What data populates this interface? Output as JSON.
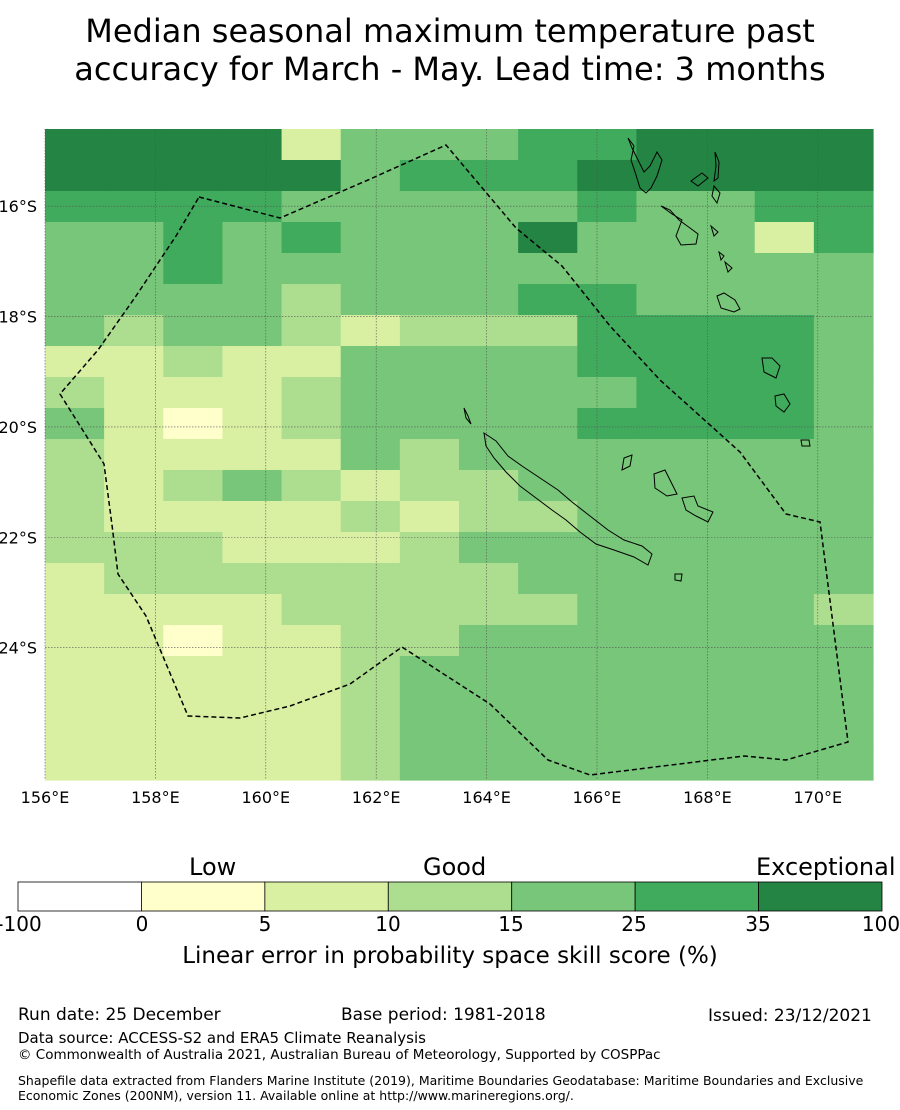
{
  "title": {
    "line1": "Median seasonal maximum temperature past",
    "line2": "accuracy for March - May. Lead time: 3 months"
  },
  "map": {
    "lon_range": [
      156,
      171
    ],
    "lat_range": [
      -26.4,
      -14.6
    ],
    "lon_ticks": [
      "156°E",
      "158°E",
      "160°E",
      "162°E",
      "164°E",
      "166°E",
      "168°E",
      "170°E"
    ],
    "lat_ticks": [
      "16°S",
      "18°S",
      "20°S",
      "22°S",
      "24°S"
    ],
    "boundary_style": "dashed black line (EEZ boundary)",
    "grid_classes_rows_top_to_bottom": [
      "66662444556666",
      "66666455566666",
      "55554444454455",
      "44545444644425",
      "44544444444444",
      "44443444554444",
      "43443233355554",
      "22322444455554",
      "32223444445554",
      "42123444455554",
      "32222434444444",
      "32343233444444",
      "32222323344444",
      "33322234444444",
      "23333333444444",
      "22223333344443",
      "22122334444444",
      "22222344444444",
      "22222344444444",
      "22222344444444",
      "22222344444444"
    ]
  },
  "legend": {
    "top_labels": [
      "Low",
      "Good",
      "Exceptional"
    ],
    "ticks": [
      "-100",
      "0",
      "5",
      "10",
      "15",
      "25",
      "35",
      "100"
    ],
    "colors": [
      "#ffffff",
      "#ffffcc",
      "#d9f0a3",
      "#addd8e",
      "#78c679",
      "#41ab5d",
      "#238443"
    ],
    "title": "Linear error in probability space skill score (%)"
  },
  "footer": {
    "run_date": "Run date: 25 December",
    "base_period": "Base period: 1981-2018",
    "issued": "Issued: 23/12/2021",
    "data_source": "Data source: ACCESS-S2 and ERA5 Climate Reanalysis",
    "copyright": "© Commonwealth of Australia 2021, Australian Bureau of Meteorology, Supported by COSPPac",
    "shapefile": "Shapefile data extracted from Flanders Marine Institute (2019), Maritime Boundaries Geodatabase: Maritime Boundaries and Exclusive Economic Zones (200NM), version 11. Available online at http://www.marineregions.org/."
  }
}
